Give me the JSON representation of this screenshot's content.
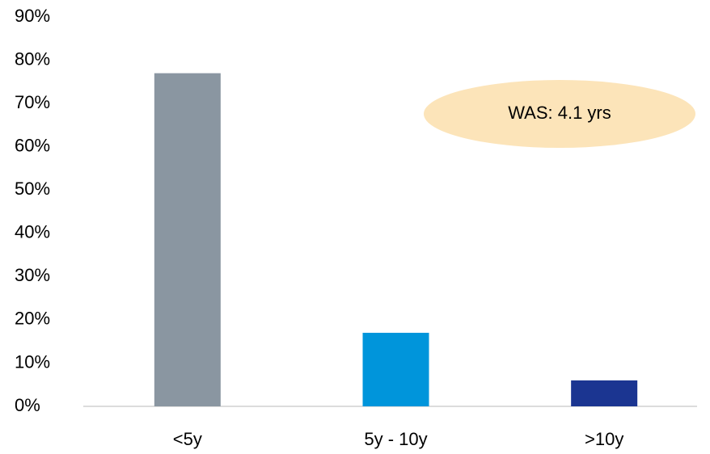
{
  "chart_data": {
    "type": "bar",
    "categories": [
      "<5y",
      "5y - 10y",
      ">10y"
    ],
    "values": [
      77,
      17,
      6
    ],
    "colors": [
      "#8a96a1",
      "#0095db",
      "#1b3591"
    ],
    "ylim": [
      0,
      90
    ],
    "yticks": [
      {
        "value": 0,
        "label": "0%"
      },
      {
        "value": 10,
        "label": "10%"
      },
      {
        "value": 20,
        "label": "20%"
      },
      {
        "value": 30,
        "label": "30%"
      },
      {
        "value": 40,
        "label": "40%"
      },
      {
        "value": 50,
        "label": "50%"
      },
      {
        "value": 60,
        "label": "60%"
      },
      {
        "value": 70,
        "label": "70%"
      },
      {
        "value": 80,
        "label": "80%"
      },
      {
        "value": 90,
        "label": "90%"
      }
    ],
    "grid": false,
    "annotation": "WAS: 4.1 yrs"
  }
}
